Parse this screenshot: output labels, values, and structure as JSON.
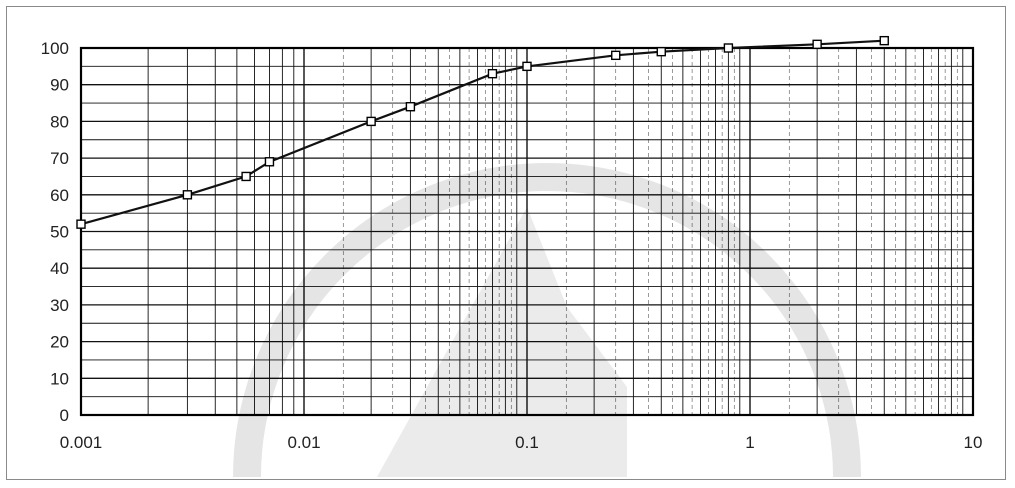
{
  "chart_data": {
    "type": "line",
    "title": "",
    "xlabel": "",
    "ylabel": "",
    "x_scale": "log",
    "xlim": [
      0.001,
      10
    ],
    "ylim": [
      0,
      100
    ],
    "grid": true,
    "legend": "none",
    "x_tick_labels": [
      "0.001",
      "0.01",
      "0.1",
      "1",
      "10"
    ],
    "y_tick_labels": [
      "0",
      "10",
      "20",
      "30",
      "40",
      "50",
      "60",
      "70",
      "80",
      "90",
      "100"
    ],
    "series": [
      {
        "points": [
          {
            "x": 0.001,
            "y": 52
          },
          {
            "x": 0.003,
            "y": 60
          },
          {
            "x": 0.0055,
            "y": 65
          },
          {
            "x": 0.007,
            "y": 69
          },
          {
            "x": 0.02,
            "y": 80
          },
          {
            "x": 0.03,
            "y": 84
          },
          {
            "x": 0.07,
            "y": 93
          },
          {
            "x": 0.1,
            "y": 95
          },
          {
            "x": 0.25,
            "y": 98
          },
          {
            "x": 0.4,
            "y": 99
          },
          {
            "x": 0.8,
            "y": 100
          },
          {
            "x": 2,
            "y": 101
          },
          {
            "x": 4,
            "y": 102
          }
        ]
      }
    ],
    "colors": {
      "line": "#111111",
      "grid": "#111111",
      "marker_fill": "#ffffff"
    }
  }
}
